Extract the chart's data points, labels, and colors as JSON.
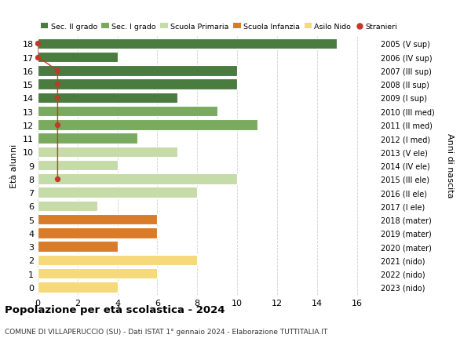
{
  "ages": [
    18,
    17,
    16,
    15,
    14,
    13,
    12,
    11,
    10,
    9,
    8,
    7,
    6,
    5,
    4,
    3,
    2,
    1,
    0
  ],
  "right_labels": [
    "2005 (V sup)",
    "2006 (IV sup)",
    "2007 (III sup)",
    "2008 (II sup)",
    "2009 (I sup)",
    "2010 (III med)",
    "2011 (II med)",
    "2012 (I med)",
    "2013 (V ele)",
    "2014 (IV ele)",
    "2015 (III ele)",
    "2016 (II ele)",
    "2017 (I ele)",
    "2018 (mater)",
    "2019 (mater)",
    "2020 (mater)",
    "2021 (nido)",
    "2022 (nido)",
    "2023 (nido)"
  ],
  "bar_values": [
    15,
    4,
    10,
    10,
    7,
    9,
    11,
    5,
    7,
    4,
    10,
    8,
    3,
    6,
    6,
    4,
    8,
    6,
    4
  ],
  "bar_colors": [
    "#4a7c3f",
    "#4a7c3f",
    "#4a7c3f",
    "#4a7c3f",
    "#4a7c3f",
    "#7aaa5e",
    "#7aaa5e",
    "#7aaa5e",
    "#c5dba8",
    "#c5dba8",
    "#c5dba8",
    "#c5dba8",
    "#c5dba8",
    "#d97c2a",
    "#d97c2a",
    "#d97c2a",
    "#f5d97a",
    "#f5d97a",
    "#f5d97a"
  ],
  "stranieri_ages": [
    18,
    17,
    16,
    15,
    14,
    12,
    8
  ],
  "stranieri_x": [
    0,
    0,
    1,
    1,
    1,
    1,
    1
  ],
  "legend_labels": [
    "Sec. II grado",
    "Sec. I grado",
    "Scuola Primaria",
    "Scuola Infanzia",
    "Asilo Nido",
    "Stranieri"
  ],
  "legend_colors": [
    "#4a7c3f",
    "#7aaa5e",
    "#c5dba8",
    "#d97c2a",
    "#f5d97a",
    "#c0392b"
  ],
  "title": "Popolazione per età scolastica - 2024",
  "subtitle": "COMUNE DI VILLAPERUCCIO (SU) - Dati ISTAT 1° gennaio 2024 - Elaborazione TUTTITALIA.IT",
  "ylabel": "Età alunni",
  "right_ylabel": "Anni di nascita",
  "xlim": [
    0,
    17
  ],
  "xticks": [
    0,
    2,
    4,
    6,
    8,
    10,
    12,
    14,
    16
  ],
  "background_color": "#ffffff",
  "grid_color": "#cccccc",
  "bar_height": 0.78
}
